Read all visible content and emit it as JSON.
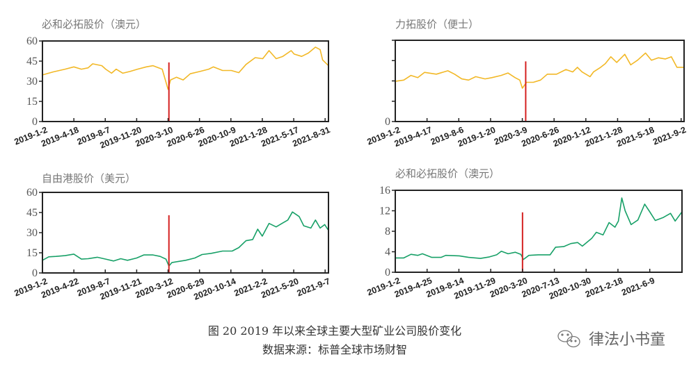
{
  "figure": {
    "caption": "图 20 2019 年以来全球主要大型矿业公司股价变化",
    "source": "数据来源：标普全球市场财智",
    "watermark": "律法小书童",
    "watermark_icon": "wechat-icon"
  },
  "colors": {
    "gold": "#F2B826",
    "green": "#17A067",
    "marker": "#D42020",
    "axis": "#222222"
  },
  "chart_data": [
    {
      "type": "line",
      "title": "必和必拓股价（澳元）",
      "color_key": "gold",
      "xlabel": "",
      "ylabel": "",
      "ylim": [
        0,
        60
      ],
      "y_ticks": [
        {
          "v": 0,
          "label": "0"
        },
        {
          "v": 15,
          "label": "15"
        },
        {
          "v": 30,
          "label": "30"
        },
        {
          "v": 45,
          "label": "45"
        },
        {
          "v": 60,
          "label": "60"
        }
      ],
      "xlim": [
        0,
        683
      ],
      "x_ticks": [
        {
          "i": 0,
          "label": "2019-1-2"
        },
        {
          "i": 75,
          "label": "2019-4-18"
        },
        {
          "i": 150,
          "label": "2019-8-7"
        },
        {
          "i": 225,
          "label": "2019-11-20"
        },
        {
          "i": 300,
          "label": "2020-3-10"
        },
        {
          "i": 375,
          "label": "2020-6-26"
        },
        {
          "i": 450,
          "label": "2020-10-9"
        },
        {
          "i": 525,
          "label": "2021-1-28"
        },
        {
          "i": 600,
          "label": "2021-5-17"
        },
        {
          "i": 675,
          "label": "2021-8-31"
        }
      ],
      "marker_line": {
        "i": 302,
        "top": 44
      },
      "x": [
        0,
        26,
        54,
        75,
        93,
        109,
        120,
        142,
        151,
        165,
        176,
        192,
        209,
        227,
        248,
        264,
        286,
        300,
        306,
        320,
        336,
        353,
        376,
        397,
        408,
        430,
        451,
        469,
        486,
        508,
        526,
        541,
        558,
        574,
        594,
        601,
        619,
        635,
        652,
        663,
        669,
        683
      ],
      "y": [
        34.7,
        37,
        39,
        40.7,
        39,
        40,
        43,
        41.6,
        39,
        36,
        39,
        36,
        37.3,
        39,
        40.7,
        41.6,
        39,
        24,
        31,
        33,
        31,
        35.6,
        37.3,
        39,
        40.7,
        38,
        38,
        36.4,
        42.5,
        47.6,
        46.8,
        52.8,
        46.8,
        48.5,
        52.8,
        50.2,
        48.5,
        51,
        55.4,
        53.6,
        45.9,
        41.6
      ]
    },
    {
      "type": "line",
      "title": "力拓股价（便士）",
      "color_key": "gold",
      "xlabel": "",
      "ylabel": "",
      "ylim": [
        0,
        4
      ],
      "y_ticks": [
        {
          "v": 0,
          "label": "0"
        },
        {
          "v": 1,
          "label": ""
        },
        {
          "v": 2,
          "label": ""
        },
        {
          "v": 3,
          "label": ""
        },
        {
          "v": 4,
          "label": ""
        }
      ],
      "xlim": [
        0,
        682
      ],
      "x_ticks": [
        {
          "i": 0,
          "label": "2019-1-2"
        },
        {
          "i": 75,
          "label": "2019-4-17"
        },
        {
          "i": 150,
          "label": "2019-8-6"
        },
        {
          "i": 225,
          "label": "2019-1-20"
        },
        {
          "i": 300,
          "label": "2020-3-9"
        },
        {
          "i": 375,
          "label": "2020-6-26"
        },
        {
          "i": 450,
          "label": "2020-1-12"
        },
        {
          "i": 525,
          "label": "2021-1-28"
        },
        {
          "i": 600,
          "label": "2021-5-18"
        },
        {
          "i": 675,
          "label": "2021-9-2"
        }
      ],
      "marker_line": {
        "i": 308,
        "top": 2.96
      },
      "x": [
        0,
        20,
        37,
        53,
        69,
        97,
        124,
        140,
        157,
        173,
        190,
        212,
        228,
        250,
        266,
        283,
        294,
        300,
        310,
        326,
        343,
        359,
        381,
        403,
        419,
        430,
        441,
        460,
        468,
        485,
        496,
        509,
        523,
        542,
        556,
        572,
        591,
        605,
        621,
        638,
        652,
        665,
        682
      ],
      "y": [
        1.98,
        2.04,
        2.27,
        2.16,
        2.42,
        2.33,
        2.5,
        2.33,
        2.1,
        2.04,
        2.21,
        2.1,
        2.16,
        2.27,
        2.39,
        2.16,
        2.04,
        1.64,
        1.93,
        1.93,
        2.04,
        2.33,
        2.33,
        2.56,
        2.44,
        2.67,
        2.44,
        2.21,
        2.44,
        2.67,
        2.85,
        3.19,
        2.91,
        3.31,
        2.79,
        3.02,
        3.37,
        3.02,
        3.14,
        3.08,
        3.19,
        2.67,
        2.67
      ]
    },
    {
      "type": "line",
      "title": "自由港股价（美元）",
      "color_key": "green",
      "xlabel": "",
      "ylabel": "",
      "ylim": [
        0,
        60
      ],
      "y_ticks": [
        {
          "v": 0,
          "label": "0"
        },
        {
          "v": 15,
          "label": "15"
        },
        {
          "v": 30,
          "label": "30"
        },
        {
          "v": 45,
          "label": "45"
        },
        {
          "v": 60,
          "label": "60"
        }
      ],
      "xlim": [
        0,
        683
      ],
      "x_ticks": [
        {
          "i": 0,
          "label": "2019-1-2"
        },
        {
          "i": 75,
          "label": "2019-4-22"
        },
        {
          "i": 150,
          "label": "2019-8-7"
        },
        {
          "i": 225,
          "label": "2019-11-21"
        },
        {
          "i": 300,
          "label": "2020-3-12"
        },
        {
          "i": 375,
          "label": "2020-6-29"
        },
        {
          "i": 450,
          "label": "2020-10-14"
        },
        {
          "i": 525,
          "label": "2021-2-2"
        },
        {
          "i": 600,
          "label": "2021-5-20"
        },
        {
          "i": 675,
          "label": "2021-9-7"
        }
      ],
      "marker_line": {
        "i": 302,
        "top": 43
      },
      "x": [
        0,
        15,
        32,
        54,
        75,
        93,
        109,
        131,
        151,
        170,
        187,
        203,
        225,
        242,
        264,
        281,
        295,
        302,
        309,
        325,
        342,
        364,
        381,
        403,
        430,
        453,
        469,
        486,
        502,
        514,
        525,
        541,
        558,
        572,
        586,
        597,
        613,
        624,
        641,
        652,
        663,
        674,
        683
      ],
      "y": [
        9.4,
        12,
        12.3,
        12.9,
        14,
        10.3,
        10.6,
        11.7,
        10.3,
        8.9,
        10.6,
        9.4,
        11.1,
        13.4,
        13.4,
        12.3,
        10.3,
        5.1,
        7.7,
        8.6,
        9.4,
        11.1,
        13.7,
        14.6,
        16.3,
        16.3,
        18.9,
        24,
        24.9,
        32.6,
        27.4,
        36.9,
        34.3,
        36.9,
        39.4,
        45.4,
        42,
        35.1,
        33.4,
        39.4,
        33.4,
        36,
        31.7
      ]
    },
    {
      "type": "line",
      "title": "必和必拓股价（澳元）",
      "color_key": "green",
      "xlabel": "",
      "ylabel": "",
      "ylim": [
        0,
        16
      ],
      "y_ticks": [
        {
          "v": 0,
          "label": "0"
        },
        {
          "v": 4,
          "label": "4"
        },
        {
          "v": 8,
          "label": "8"
        },
        {
          "v": 12,
          "label": "12"
        },
        {
          "v": 16,
          "label": "16"
        }
      ],
      "xlim": [
        0,
        676
      ],
      "x_ticks": [
        {
          "i": 0,
          "label": "2019-1-2"
        },
        {
          "i": 75,
          "label": "2019-4-25"
        },
        {
          "i": 150,
          "label": "2019-8-14"
        },
        {
          "i": 225,
          "label": "2019-11-29"
        },
        {
          "i": 300,
          "label": "2020-3-20"
        },
        {
          "i": 375,
          "label": "2020-7-13"
        },
        {
          "i": 450,
          "label": "2020-10-30"
        },
        {
          "i": 525,
          "label": "2021-2-18"
        },
        {
          "i": 600,
          "label": "2021-6-9"
        }
      ],
      "marker_line": {
        "i": 300,
        "top": 11.7
      },
      "x": [
        0,
        20,
        37,
        53,
        64,
        86,
        108,
        119,
        151,
        173,
        201,
        222,
        239,
        250,
        266,
        283,
        296,
        302,
        315,
        337,
        365,
        378,
        397,
        414,
        430,
        441,
        463,
        474,
        490,
        504,
        518,
        526,
        534,
        542,
        556,
        572,
        588,
        600,
        613,
        632,
        649,
        660,
        676
      ],
      "y": [
        2.8,
        2.8,
        3.5,
        3.3,
        3.6,
        2.9,
        2.9,
        3.3,
        3.2,
        2.9,
        2.7,
        3.0,
        3.4,
        4.1,
        3.6,
        3.9,
        3.5,
        2.5,
        3.3,
        3.4,
        3.4,
        4.9,
        5.0,
        5.6,
        5.8,
        5.1,
        6.6,
        7.8,
        7.3,
        9.7,
        8.8,
        10,
        14.5,
        12,
        9.3,
        10.2,
        13.3,
        11.8,
        10.1,
        10.7,
        11.5,
        10,
        11.8
      ]
    }
  ]
}
